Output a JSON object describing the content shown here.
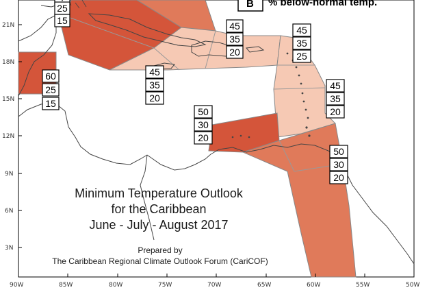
{
  "title": {
    "line1": "Minimum Temperature Outlook",
    "line2": "for the Caribbean",
    "line3": "June - July - August 2017"
  },
  "credit": {
    "line1": "Prepared by",
    "line2": "The Caribbean Regional Climate Outlook Forum (CariCOF)"
  },
  "legend": {
    "symbol": "B",
    "text": "% below-normal temp."
  },
  "axes": {
    "lat_labels": [
      "21N",
      "18N",
      "15N",
      "12N",
      "9N",
      "6N",
      "3N"
    ],
    "lon_labels": [
      "90W",
      "85W",
      "80W",
      "75W",
      "70W",
      "65W",
      "60W",
      "55W",
      "50W"
    ]
  },
  "colors": {
    "dark_region": "#d4553a",
    "mid_region": "#e07a5a",
    "light_region": "#f6c9b4",
    "land_outline": "#444444"
  },
  "regions": [
    {
      "name": "greater-antilles-west",
      "probs": [
        "?",
        "25",
        "15"
      ]
    },
    {
      "name": "central-america-north",
      "probs": [
        "60",
        "25",
        "15"
      ]
    },
    {
      "name": "hispaniola-jamaica",
      "probs": [
        "45",
        "35",
        "20"
      ]
    },
    {
      "name": "leeward-islands-north",
      "probs": [
        "45",
        "35",
        "25"
      ]
    },
    {
      "name": "caribbean-south-central",
      "probs": [
        "45",
        "35",
        "20"
      ]
    },
    {
      "name": "windward-islands",
      "probs": [
        "45",
        "35",
        "20"
      ]
    },
    {
      "name": "abc-islands",
      "probs": [
        "50",
        "30",
        "20"
      ]
    },
    {
      "name": "guianas",
      "probs": [
        "50",
        "30",
        "20"
      ]
    }
  ]
}
